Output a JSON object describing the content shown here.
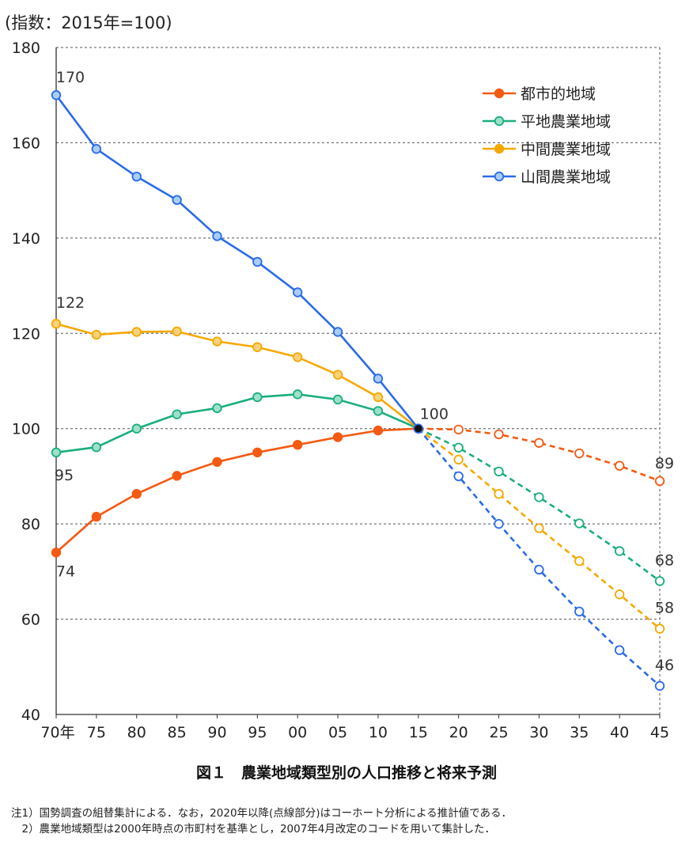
{
  "chart_data": {
    "type": "line",
    "unit_label": "(指数：2015年=100)",
    "title": "図１　農業地域類型別の人口推移と将来予測",
    "categories": [
      "70年",
      "75",
      "80",
      "85",
      "90",
      "95",
      "00",
      "05",
      "10",
      "15",
      "20",
      "25",
      "30",
      "35",
      "40",
      "45"
    ],
    "ylim": [
      40,
      180
    ],
    "yticks": [
      "40",
      "60",
      "80",
      "100",
      "120",
      "140",
      "160",
      "180"
    ],
    "grid": true,
    "legend_position": "top-right",
    "projection_start_index": 9,
    "series": [
      {
        "name": "都市的地域",
        "color": "#f45a12",
        "marker": "filled",
        "values": [
          74,
          81.5,
          86.3,
          90.1,
          93,
          95,
          96.6,
          98.2,
          99.6,
          100,
          99.8,
          98.8,
          97,
          94.8,
          92.2,
          89
        ]
      },
      {
        "name": "平地農業地域",
        "color": "#1aae7e",
        "marker": "open",
        "values": [
          95,
          96.1,
          100,
          103,
          104.3,
          106.6,
          107.2,
          106.1,
          103.7,
          100,
          96,
          91,
          85.6,
          80.1,
          74.3,
          68
        ]
      },
      {
        "name": "中間農業地域",
        "color": "#f5a800",
        "marker": "open",
        "values": [
          122,
          119.7,
          120.3,
          120.4,
          118.3,
          117.1,
          115,
          111.3,
          106.6,
          100,
          93.5,
          86.3,
          79.1,
          72.2,
          65.2,
          58
        ]
      },
      {
        "name": "山間農業地域",
        "color": "#2a6be8",
        "marker": "open",
        "values": [
          170,
          158.7,
          152.9,
          148,
          140.4,
          135,
          128.6,
          120.3,
          110.5,
          100,
          90,
          80,
          70.4,
          61.6,
          53.5,
          46
        ]
      }
    ],
    "annotations": [
      {
        "text": "170",
        "series": 3,
        "index": 0
      },
      {
        "text": "122",
        "series": 2,
        "index": 0
      },
      {
        "text": "95",
        "series": 1,
        "index": 0
      },
      {
        "text": "74",
        "series": 0,
        "index": 0
      },
      {
        "text": "100",
        "series": 0,
        "index": 9
      },
      {
        "text": "89",
        "series": 0,
        "index": 15
      },
      {
        "text": "68",
        "series": 1,
        "index": 15
      },
      {
        "text": "58",
        "series": 2,
        "index": 15
      },
      {
        "text": "46",
        "series": 3,
        "index": 15
      }
    ]
  },
  "notes": [
    "注1）国勢調査の組替集計による．なお，2020年以降(点線部分)はコーホート分析による推計値である．",
    "　2）農業地域類型は2000年時点の市町村を基準とし，2007年4月改定のコードを用いて集計した．"
  ]
}
